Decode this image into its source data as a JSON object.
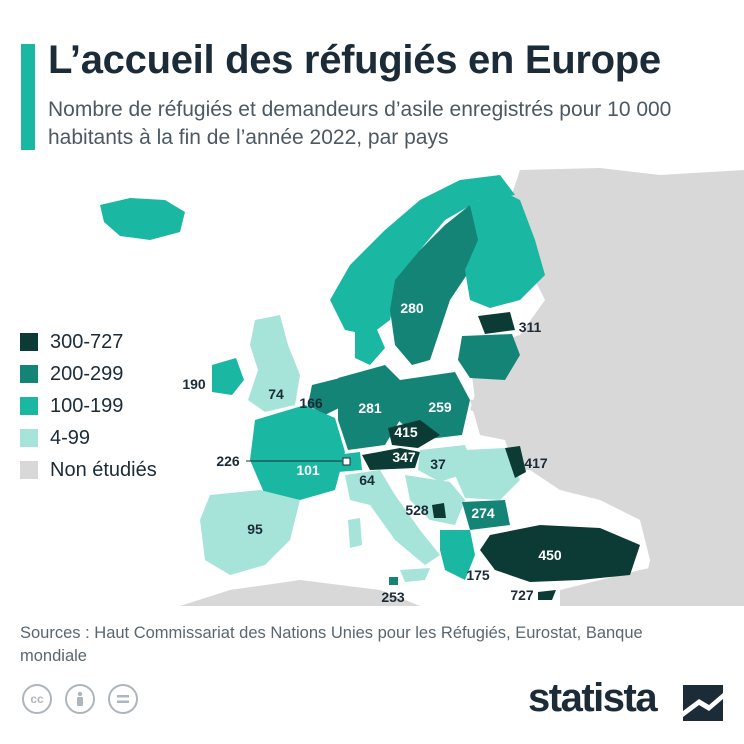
{
  "title": "L’accueil des réfugiés en Europe",
  "subtitle": "Nombre de réfugiés et demandeurs d’asile enregistrés pour 10 000 habitants à la fin de l’année 2022, par pays",
  "colors": {
    "accent": "#1ab7a3",
    "dark": "#0d3b33",
    "c300": "#0b3b34",
    "c200": "#138476",
    "c100": "#1ab7a3",
    "c4": "#a6e4da",
    "na": "#d8d8d8",
    "sea": "#ffffff"
  },
  "legend": [
    {
      "label": "300-727",
      "color": "#0b3b34"
    },
    {
      "label": "200-299",
      "color": "#138476"
    },
    {
      "label": "100-199",
      "color": "#1ab7a3"
    },
    {
      "label": "4-99",
      "color": "#a6e4da"
    },
    {
      "label": "Non étudiés",
      "color": "#d8d8d8"
    }
  ],
  "map_labels": {
    "norway_sweden": "280",
    "estonia": "311",
    "ireland": "190",
    "uk": "74",
    "belgium": "166",
    "germany": "281",
    "poland": "259",
    "czechia": "415",
    "austria": "347",
    "switzerland": "226",
    "france": "101",
    "hungary": "37",
    "moldova": "417",
    "italy": "64",
    "montenegro": "528",
    "bulgaria": "274",
    "spain": "95",
    "turkey": "450",
    "greece": "175",
    "malta": "253",
    "cyprus": "727"
  },
  "sources": "Sources : Haut Commissariat des Nations Unies pour les Réfugiés, Eurostat, Banque mondiale",
  "license_icons": [
    "cc-icon",
    "by-icon",
    "nd-icon"
  ],
  "brand": "statista"
}
